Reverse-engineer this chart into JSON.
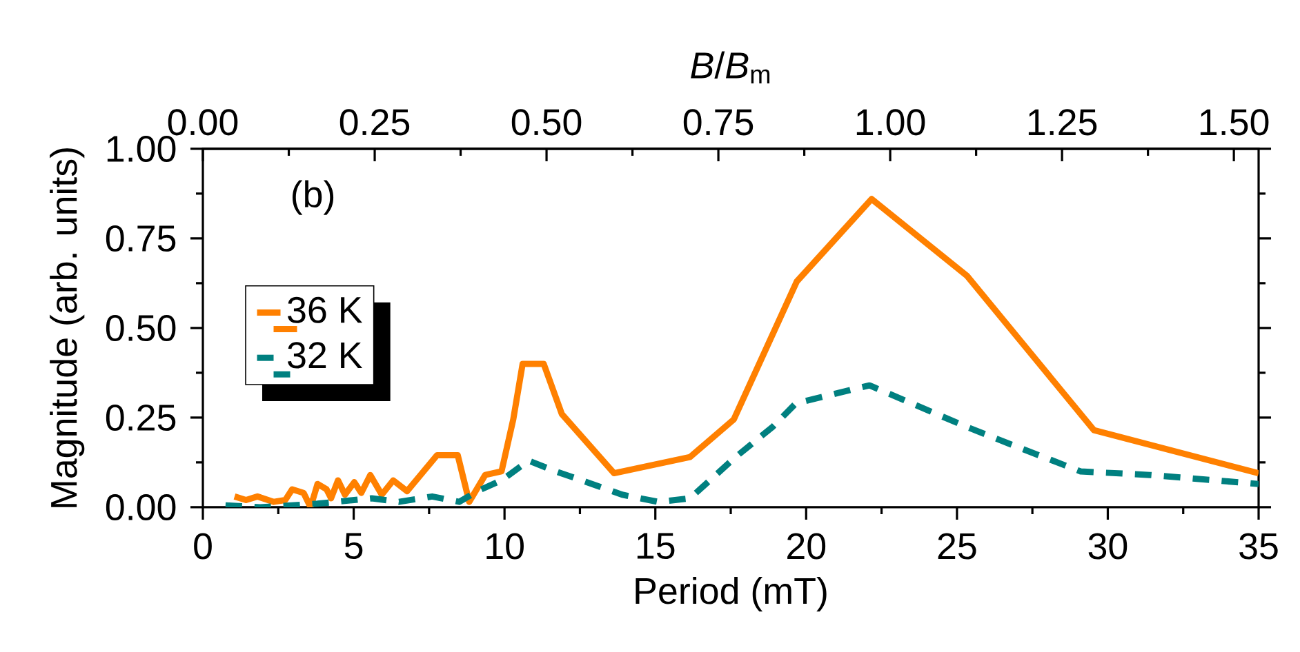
{
  "chart_data": {
    "type": "line",
    "xlabel": "Period (mT)",
    "ylabel": "Magnitude (arb. units)",
    "x2label": "*B*/*B*$_{m}$",
    "annotations": [
      "(b)"
    ],
    "xlim": [
      0,
      35
    ],
    "xticks": [
      0,
      5,
      10,
      15,
      20,
      25,
      30,
      35
    ],
    "x2lim": [
      0,
      1.536
    ],
    "x2ticks": [
      {
        "value": 0,
        "label": "0.00"
      },
      {
        "value": 0.25,
        "label": "0.25"
      },
      {
        "value": 0.5,
        "label": "0.50"
      },
      {
        "value": 0.75,
        "label": "0.75"
      },
      {
        "value": 1,
        "label": "1.00"
      },
      {
        "value": 1.25,
        "label": "1.25"
      },
      {
        "value": 1.5,
        "label": "1.50"
      }
    ],
    "ylim": [
      0,
      1
    ],
    "yticks": [
      {
        "value": 0,
        "label": "0.00"
      },
      {
        "value": 0.25,
        "label": "0.25"
      },
      {
        "value": 0.5,
        "label": "0.50"
      },
      {
        "value": 0.75,
        "label": "0.75"
      },
      {
        "value": 1,
        "label": "1.00"
      }
    ],
    "legend": "left",
    "marker": "none",
    "grid": false,
    "series": [
      {
        "name": "36 K",
        "color": "#ff8000",
        "line_style": "solid",
        "x": [
          1.05,
          1.43,
          1.81,
          2.35,
          2.73,
          2.96,
          3.34,
          3.57,
          3.8,
          4.1,
          4.25,
          4.48,
          4.71,
          5.02,
          5.25,
          5.55,
          5.93,
          6.31,
          6.77,
          7.76,
          8.45,
          8.83,
          9.36,
          9.9,
          10.29,
          10.6,
          11.3,
          11.9,
          13.63,
          16.15,
          17.6,
          19.69,
          22.17,
          25.34,
          29.54,
          35.0
        ],
        "values": [
          0.03,
          0.02,
          0.03,
          0.015,
          0.02,
          0.05,
          0.04,
          0.0,
          0.065,
          0.05,
          0.025,
          0.075,
          0.035,
          0.07,
          0.04,
          0.09,
          0.035,
          0.075,
          0.045,
          0.145,
          0.145,
          0.015,
          0.09,
          0.1,
          0.245,
          0.4,
          0.4,
          0.26,
          0.095,
          0.14,
          0.245,
          0.63,
          0.86,
          0.645,
          0.215,
          0.095
        ]
      },
      {
        "name": "32 K",
        "color": "#008080",
        "line_style": "dashed",
        "x": [
          0.75,
          1.9,
          3.8,
          5.6,
          6.5,
          7.6,
          8.5,
          9.1,
          9.9,
          10.8,
          11.7,
          12.9,
          13.9,
          15.1,
          16.15,
          17.66,
          18.9,
          19.66,
          22.1,
          25.3,
          27.1,
          29.1,
          31.4,
          35.0
        ],
        "values": [
          0.005,
          0.0,
          0.01,
          0.025,
          0.015,
          0.03,
          0.015,
          0.045,
          0.075,
          0.13,
          0.1,
          0.065,
          0.035,
          0.015,
          0.025,
          0.14,
          0.225,
          0.29,
          0.34,
          0.225,
          0.165,
          0.1,
          0.09,
          0.065
        ]
      }
    ]
  }
}
